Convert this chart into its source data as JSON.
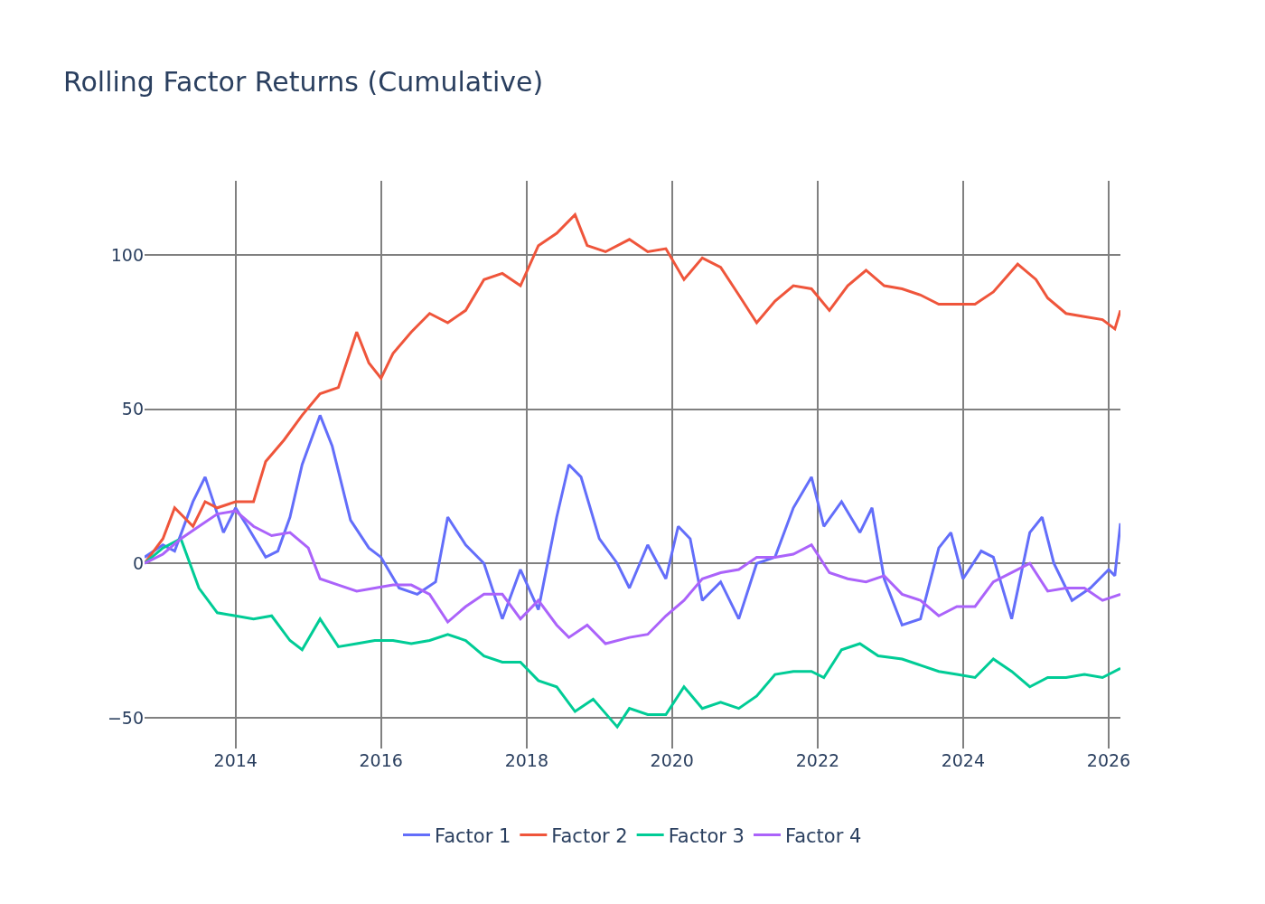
{
  "chart_data": {
    "type": "line",
    "title": "Rolling Factor Returns (Cumulative)",
    "xlim": [
      "2012-10",
      "2026-03"
    ],
    "xticks": [
      "2014",
      "2016",
      "2018",
      "2020",
      "2022",
      "2024",
      "2026"
    ],
    "ylim": [
      -60,
      124
    ],
    "yticks": [
      {
        "value": -50,
        "label": "−50"
      },
      0,
      50,
      100
    ],
    "grid": true,
    "legend": "bottom",
    "series": [
      {
        "name": "Factor 1",
        "color": "#636efa",
        "x": [
          "2012-10",
          "2013-01",
          "2013-03",
          "2013-06",
          "2013-08",
          "2013-09",
          "2013-11",
          "2014-01",
          "2014-03",
          "2014-06",
          "2014-08",
          "2014-10",
          "2014-12",
          "2015-03",
          "2015-05",
          "2015-08",
          "2015-11",
          "2016-01",
          "2016-04",
          "2016-07",
          "2016-10",
          "2016-12",
          "2017-03",
          "2017-06",
          "2017-09",
          "2017-12",
          "2018-03",
          "2018-06",
          "2018-08",
          "2018-10",
          "2019-01",
          "2019-04",
          "2019-06",
          "2019-09",
          "2019-12",
          "2020-02",
          "2020-04",
          "2020-06",
          "2020-09",
          "2020-12",
          "2021-03",
          "2021-06",
          "2021-09",
          "2021-12",
          "2022-02",
          "2022-05",
          "2022-08",
          "2022-10",
          "2022-12",
          "2023-03",
          "2023-06",
          "2023-09",
          "2023-11",
          "2024-01",
          "2024-04",
          "2024-06",
          "2024-09",
          "2024-12",
          "2025-02",
          "2025-04",
          "2025-07",
          "2025-10",
          "2026-01",
          "2026-02",
          "2026-03"
        ],
        "values": [
          2,
          6,
          4,
          20,
          28,
          22,
          10,
          18,
          12,
          2,
          4,
          15,
          32,
          48,
          38,
          14,
          5,
          2,
          -8,
          -10,
          -6,
          15,
          6,
          0,
          -18,
          -2,
          -15,
          15,
          32,
          28,
          8,
          0,
          -8,
          6,
          -5,
          12,
          8,
          -12,
          -6,
          -18,
          0,
          2,
          18,
          28,
          12,
          20,
          10,
          18,
          -5,
          -20,
          -18,
          5,
          10,
          -5,
          4,
          2,
          -18,
          10,
          15,
          0,
          -12,
          -8,
          -2,
          -4,
          13
        ]
      },
      {
        "name": "Factor 2",
        "color": "#ef553b",
        "x": [
          "2012-10",
          "2013-01",
          "2013-03",
          "2013-06",
          "2013-08",
          "2013-10",
          "2014-01",
          "2014-04",
          "2014-06",
          "2014-09",
          "2014-12",
          "2015-03",
          "2015-06",
          "2015-09",
          "2015-11",
          "2016-01",
          "2016-03",
          "2016-06",
          "2016-09",
          "2016-12",
          "2017-03",
          "2017-06",
          "2017-09",
          "2017-12",
          "2018-03",
          "2018-06",
          "2018-09",
          "2018-11",
          "2019-02",
          "2019-06",
          "2019-09",
          "2019-12",
          "2020-03",
          "2020-06",
          "2020-09",
          "2020-12",
          "2021-03",
          "2021-06",
          "2021-09",
          "2021-12",
          "2022-03",
          "2022-06",
          "2022-09",
          "2022-12",
          "2023-03",
          "2023-06",
          "2023-09",
          "2023-12",
          "2024-03",
          "2024-06",
          "2024-10",
          "2025-01",
          "2025-03",
          "2025-06",
          "2025-09",
          "2025-12",
          "2026-02",
          "2026-03"
        ],
        "values": [
          0,
          8,
          18,
          12,
          20,
          18,
          20,
          20,
          33,
          40,
          48,
          55,
          57,
          75,
          65,
          60,
          68,
          75,
          81,
          78,
          82,
          92,
          94,
          90,
          103,
          107,
          113,
          103,
          101,
          105,
          101,
          102,
          92,
          99,
          96,
          87,
          78,
          85,
          90,
          89,
          82,
          90,
          95,
          90,
          89,
          87,
          84,
          84,
          84,
          88,
          97,
          92,
          86,
          81,
          80,
          79,
          76,
          82
        ]
      },
      {
        "name": "Factor 3",
        "color": "#00cc96",
        "x": [
          "2012-10",
          "2013-01",
          "2013-04",
          "2013-07",
          "2013-10",
          "2014-01",
          "2014-04",
          "2014-07",
          "2014-10",
          "2014-12",
          "2015-03",
          "2015-06",
          "2015-09",
          "2015-12",
          "2016-03",
          "2016-06",
          "2016-09",
          "2016-12",
          "2017-03",
          "2017-06",
          "2017-09",
          "2017-12",
          "2018-03",
          "2018-06",
          "2018-09",
          "2018-12",
          "2019-04",
          "2019-06",
          "2019-09",
          "2019-12",
          "2020-03",
          "2020-06",
          "2020-09",
          "2020-12",
          "2021-03",
          "2021-06",
          "2021-09",
          "2021-12",
          "2022-02",
          "2022-05",
          "2022-08",
          "2022-11",
          "2023-03",
          "2023-06",
          "2023-09",
          "2023-12",
          "2024-03",
          "2024-06",
          "2024-09",
          "2024-12",
          "2025-03",
          "2025-06",
          "2025-09",
          "2025-12",
          "2026-03"
        ],
        "values": [
          0,
          5,
          8,
          -8,
          -16,
          -17,
          -18,
          -17,
          -25,
          -28,
          -18,
          -27,
          -26,
          -25,
          -25,
          -26,
          -25,
          -23,
          -25,
          -30,
          -32,
          -32,
          -38,
          -40,
          -48,
          -44,
          -53,
          -47,
          -49,
          -49,
          -40,
          -47,
          -45,
          -47,
          -43,
          -36,
          -35,
          -35,
          -37,
          -28,
          -26,
          -30,
          -31,
          -33,
          -35,
          -36,
          -37,
          -31,
          -35,
          -40,
          -37,
          -37,
          -36,
          -37,
          -34
        ]
      },
      {
        "name": "Factor 4",
        "color": "#ab63fa",
        "x": [
          "2012-10",
          "2013-01",
          "2013-04",
          "2013-07",
          "2013-10",
          "2014-01",
          "2014-04",
          "2014-07",
          "2014-10",
          "2015-01",
          "2015-03",
          "2015-06",
          "2015-09",
          "2015-12",
          "2016-03",
          "2016-06",
          "2016-09",
          "2016-12",
          "2017-03",
          "2017-06",
          "2017-09",
          "2017-12",
          "2018-03",
          "2018-06",
          "2018-08",
          "2018-11",
          "2019-02",
          "2019-06",
          "2019-09",
          "2019-12",
          "2020-03",
          "2020-06",
          "2020-09",
          "2020-12",
          "2021-03",
          "2021-06",
          "2021-09",
          "2021-12",
          "2022-03",
          "2022-06",
          "2022-09",
          "2022-12",
          "2023-03",
          "2023-06",
          "2023-09",
          "2023-12",
          "2024-03",
          "2024-06",
          "2024-09",
          "2024-12",
          "2025-03",
          "2025-06",
          "2025-09",
          "2025-12",
          "2026-03"
        ],
        "values": [
          0,
          3,
          8,
          12,
          16,
          17,
          12,
          9,
          10,
          5,
          -5,
          -7,
          -9,
          -8,
          -7,
          -7,
          -10,
          -19,
          -14,
          -10,
          -10,
          -18,
          -12,
          -20,
          -24,
          -20,
          -26,
          -24,
          -23,
          -17,
          -12,
          -5,
          -3,
          -2,
          2,
          2,
          3,
          6,
          -3,
          -5,
          -6,
          -4,
          -10,
          -12,
          -17,
          -14,
          -14,
          -6,
          -3,
          0,
          -9,
          -8,
          -8,
          -12,
          -10
        ]
      }
    ]
  }
}
